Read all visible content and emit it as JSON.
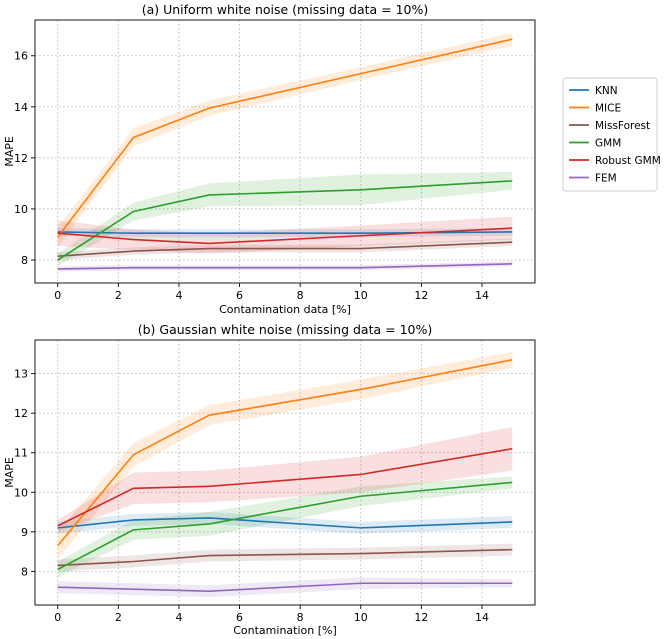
{
  "legend": {
    "entries": [
      {
        "name": "KNN",
        "color": "#1f77b4"
      },
      {
        "name": "MICE",
        "color": "#ff7f0e"
      },
      {
        "name": "MissForest",
        "color": "#8c564b"
      },
      {
        "name": "GMM",
        "color": "#2ca02c"
      },
      {
        "name": "Robust GMM",
        "color": "#d62728"
      },
      {
        "name": "FEM",
        "color": "#9467bd"
      }
    ]
  },
  "chart_data": [
    {
      "type": "line",
      "title": "(a) Uniform white noise (missing data = 10%)",
      "xlabel": "Contamination data [%]",
      "ylabel": "MAPE",
      "x": [
        0,
        2.5,
        5,
        10,
        15
      ],
      "xlim": [
        -0.75,
        15.75
      ],
      "ylim": [
        7.1,
        17.4
      ],
      "xticks": [
        0,
        2,
        4,
        6,
        8,
        10,
        12,
        14
      ],
      "yticks": [
        8,
        10,
        12,
        14,
        16
      ],
      "grid": true,
      "series": [
        {
          "name": "KNN",
          "color": "#1f77b4",
          "values": [
            9.1,
            9.05,
            9.05,
            9.05,
            9.1
          ],
          "band": [
            0.15,
            0.15,
            0.15,
            0.15,
            0.15
          ]
        },
        {
          "name": "MICE",
          "color": "#ff7f0e",
          "values": [
            8.9,
            12.8,
            13.95,
            15.3,
            16.65
          ],
          "band": [
            0.4,
            0.35,
            0.3,
            0.25,
            0.25
          ]
        },
        {
          "name": "MissForest",
          "color": "#8c564b",
          "values": [
            8.15,
            8.35,
            8.45,
            8.45,
            8.7
          ],
          "band": [
            0.15,
            0.15,
            0.15,
            0.15,
            0.15
          ]
        },
        {
          "name": "GMM",
          "color": "#2ca02c",
          "values": [
            8.0,
            9.9,
            10.55,
            10.75,
            11.1
          ],
          "band": [
            0.25,
            0.35,
            0.45,
            0.6,
            0.35
          ]
        },
        {
          "name": "Robust GMM",
          "color": "#d62728",
          "values": [
            9.05,
            8.8,
            8.65,
            8.95,
            9.25
          ],
          "band": [
            0.5,
            0.4,
            0.4,
            0.4,
            0.45
          ]
        },
        {
          "name": "FEM",
          "color": "#9467bd",
          "values": [
            7.65,
            7.7,
            7.7,
            7.7,
            7.85
          ],
          "band": [
            0.1,
            0.1,
            0.1,
            0.1,
            0.1
          ]
        }
      ]
    },
    {
      "type": "line",
      "title": "(b) Gaussian white noise (missing data = 10%)",
      "xlabel": "Contamination [%]",
      "ylabel": "MAPE",
      "x": [
        0,
        2.5,
        5,
        10,
        15
      ],
      "xlim": [
        -0.75,
        15.75
      ],
      "ylim": [
        7.15,
        13.85
      ],
      "xticks": [
        0,
        2,
        4,
        6,
        8,
        10,
        12,
        14
      ],
      "yticks": [
        8,
        9,
        10,
        11,
        12,
        13
      ],
      "grid": true,
      "series": [
        {
          "name": "KNN",
          "color": "#1f77b4",
          "values": [
            9.1,
            9.3,
            9.35,
            9.1,
            9.25
          ],
          "band": [
            0.15,
            0.15,
            0.15,
            0.15,
            0.15
          ]
        },
        {
          "name": "MICE",
          "color": "#ff7f0e",
          "values": [
            8.65,
            10.95,
            11.95,
            12.6,
            13.35
          ],
          "band": [
            0.35,
            0.3,
            0.25,
            0.25,
            0.2
          ]
        },
        {
          "name": "MissForest",
          "color": "#8c564b",
          "values": [
            8.15,
            8.25,
            8.4,
            8.45,
            8.55
          ],
          "band": [
            0.15,
            0.15,
            0.15,
            0.15,
            0.15
          ]
        },
        {
          "name": "GMM",
          "color": "#2ca02c",
          "values": [
            8.05,
            9.05,
            9.2,
            9.9,
            10.25
          ],
          "band": [
            0.2,
            0.25,
            0.3,
            0.25,
            0.15
          ]
        },
        {
          "name": "Robust GMM",
          "color": "#d62728",
          "values": [
            9.15,
            10.1,
            10.15,
            10.45,
            11.1
          ],
          "band": [
            0.15,
            0.4,
            0.4,
            0.45,
            0.55
          ]
        },
        {
          "name": "FEM",
          "color": "#9467bd",
          "values": [
            7.6,
            7.55,
            7.5,
            7.7,
            7.7
          ],
          "band": [
            0.15,
            0.15,
            0.15,
            0.15,
            0.1
          ]
        }
      ]
    }
  ]
}
